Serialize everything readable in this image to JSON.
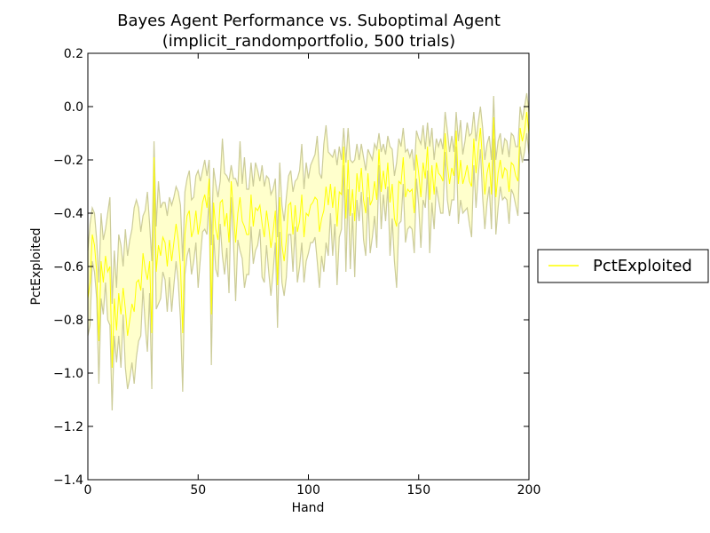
{
  "chart_data": {
    "type": "line",
    "title_line1": "Bayes Agent Performance vs. Suboptimal Agent",
    "title_line2": "(implicit_randomportfolio, 500 trials)",
    "xlabel": "Hand",
    "ylabel": "PctExploited",
    "xlim": [
      0,
      200
    ],
    "ylim": [
      -1.4,
      0.2
    ],
    "xticks": [
      0,
      50,
      100,
      150,
      200
    ],
    "xtick_labels": [
      "0",
      "50",
      "100",
      "150",
      "200"
    ],
    "yticks": [
      0.2,
      0.0,
      -0.2,
      -0.4,
      -0.6,
      -0.8,
      -1.0,
      -1.2,
      -1.4
    ],
    "ytick_labels": [
      "0.2",
      "0.0",
      "−0.2",
      "−0.4",
      "−0.6",
      "−0.8",
      "−1.0",
      "−1.2",
      "−1.4"
    ],
    "legend": {
      "label": "PctExploited",
      "placement": "right"
    },
    "series": [
      {
        "name": "PctExploited",
        "color": "#ffff00",
        "band_fill": "#ffffcc",
        "band_edge": "#cccc99",
        "x_start": 0,
        "x_step": 1,
        "mean": [
          -0.72,
          -0.66,
          -0.48,
          -0.52,
          -0.62,
          -0.88,
          -0.58,
          -0.66,
          -0.56,
          -0.62,
          -0.6,
          -0.98,
          -0.72,
          -0.84,
          -0.7,
          -0.78,
          -0.68,
          -0.76,
          -0.86,
          -0.8,
          -0.74,
          -0.77,
          -0.66,
          -0.65,
          -0.69,
          -0.55,
          -0.61,
          -0.65,
          -0.58,
          -0.85,
          -0.19,
          -0.62,
          -0.52,
          -0.56,
          -0.49,
          -0.51,
          -0.6,
          -0.5,
          -0.58,
          -0.51,
          -0.44,
          -0.5,
          -0.6,
          -0.85,
          -0.48,
          -0.41,
          -0.39,
          -0.49,
          -0.46,
          -0.39,
          -0.48,
          -0.43,
          -0.36,
          -0.33,
          -0.38,
          -0.27,
          -0.78,
          -0.36,
          -0.46,
          -0.5,
          -0.36,
          -0.35,
          -0.45,
          -0.4,
          -0.51,
          -0.28,
          -0.39,
          -0.51,
          -0.4,
          -0.34,
          -0.43,
          -0.45,
          -0.48,
          -0.48,
          -0.33,
          -0.45,
          -0.38,
          -0.39,
          -0.37,
          -0.44,
          -0.49,
          -0.39,
          -0.45,
          -0.53,
          -0.47,
          -0.39,
          -0.67,
          -0.34,
          -0.52,
          -0.58,
          -0.5,
          -0.37,
          -0.36,
          -0.48,
          -0.37,
          -0.47,
          -0.43,
          -0.33,
          -0.49,
          -0.4,
          -0.41,
          -0.37,
          -0.36,
          -0.34,
          -0.35,
          -0.47,
          -0.42,
          -0.39,
          -0.3,
          -0.37,
          -0.29,
          -0.38,
          -0.3,
          -0.45,
          -0.32,
          -0.33,
          -0.15,
          -0.42,
          -0.2,
          -0.41,
          -0.31,
          -0.43,
          -0.25,
          -0.32,
          -0.23,
          -0.35,
          -0.4,
          -0.25,
          -0.37,
          -0.35,
          -0.28,
          -0.35,
          -0.16,
          -0.32,
          -0.24,
          -0.31,
          -0.21,
          -0.36,
          -0.29,
          -0.42,
          -0.45,
          -0.28,
          -0.29,
          -0.19,
          -0.34,
          -0.31,
          -0.32,
          -0.31,
          -0.4,
          -0.18,
          -0.25,
          -0.34,
          -0.21,
          -0.27,
          -0.15,
          -0.35,
          -0.22,
          -0.33,
          -0.21,
          -0.25,
          -0.26,
          -0.28,
          -0.1,
          -0.22,
          -0.29,
          -0.23,
          -0.26,
          -0.09,
          -0.29,
          -0.2,
          -0.29,
          -0.26,
          -0.22,
          -0.28,
          -0.3,
          -0.12,
          -0.25,
          -0.16,
          -0.08,
          -0.21,
          -0.33,
          -0.25,
          -0.21,
          -0.33,
          -0.04,
          -0.34,
          -0.25,
          -0.2,
          -0.27,
          -0.23,
          -0.24,
          -0.32,
          -0.21,
          -0.22,
          -0.26,
          -0.28,
          -0.08,
          -0.13,
          -0.09,
          -0.02,
          -0.1
        ],
        "upper": [
          -0.54,
          -0.44,
          -0.38,
          -0.4,
          -0.5,
          -0.66,
          -0.4,
          -0.5,
          -0.46,
          -0.4,
          -0.34,
          -0.74,
          -0.54,
          -0.68,
          -0.48,
          -0.52,
          -0.6,
          -0.46,
          -0.56,
          -0.5,
          -0.46,
          -0.38,
          -0.35,
          -0.38,
          -0.47,
          -0.41,
          -0.39,
          -0.32,
          -0.44,
          -0.58,
          -0.13,
          -0.45,
          -0.28,
          -0.38,
          -0.36,
          -0.36,
          -0.41,
          -0.34,
          -0.37,
          -0.34,
          -0.3,
          -0.32,
          -0.37,
          -0.58,
          -0.32,
          -0.27,
          -0.24,
          -0.35,
          -0.34,
          -0.26,
          -0.24,
          -0.28,
          -0.24,
          -0.2,
          -0.26,
          -0.2,
          -0.52,
          -0.23,
          -0.29,
          -0.34,
          -0.28,
          -0.12,
          -0.25,
          -0.26,
          -0.28,
          -0.22,
          -0.27,
          -0.27,
          -0.3,
          -0.13,
          -0.29,
          -0.19,
          -0.31,
          -0.31,
          -0.21,
          -0.3,
          -0.21,
          -0.24,
          -0.28,
          -0.22,
          -0.3,
          -0.26,
          -0.27,
          -0.33,
          -0.31,
          -0.27,
          -0.49,
          -0.21,
          -0.37,
          -0.43,
          -0.34,
          -0.26,
          -0.24,
          -0.32,
          -0.28,
          -0.27,
          -0.24,
          -0.14,
          -0.31,
          -0.21,
          -0.27,
          -0.22,
          -0.2,
          -0.18,
          -0.11,
          -0.25,
          -0.27,
          -0.14,
          -0.07,
          -0.17,
          -0.18,
          -0.19,
          -0.16,
          -0.22,
          -0.15,
          -0.2,
          -0.08,
          -0.21,
          -0.08,
          -0.2,
          -0.21,
          -0.2,
          -0.14,
          -0.2,
          -0.14,
          -0.19,
          -0.24,
          -0.16,
          -0.18,
          -0.2,
          -0.14,
          -0.16,
          -0.1,
          -0.17,
          -0.14,
          -0.18,
          -0.11,
          -0.15,
          -0.16,
          -0.26,
          -0.21,
          -0.12,
          -0.15,
          -0.08,
          -0.17,
          -0.16,
          -0.19,
          -0.16,
          -0.24,
          -0.09,
          -0.12,
          -0.14,
          -0.07,
          -0.16,
          -0.06,
          -0.15,
          -0.08,
          -0.2,
          -0.12,
          -0.15,
          -0.12,
          -0.16,
          -0.02,
          -0.09,
          -0.17,
          -0.11,
          -0.17,
          -0.02,
          -0.13,
          -0.05,
          -0.18,
          -0.13,
          -0.06,
          -0.11,
          -0.1,
          -0.02,
          -0.13,
          -0.06,
          0.0,
          -0.08,
          -0.2,
          -0.14,
          -0.11,
          -0.2,
          0.04,
          -0.2,
          -0.13,
          -0.1,
          -0.18,
          -0.12,
          -0.13,
          -0.19,
          -0.1,
          -0.11,
          -0.15,
          -0.15,
          0.0,
          -0.05,
          0.0,
          0.05,
          -0.02
        ],
        "lower": [
          -0.86,
          -0.82,
          -0.58,
          -0.62,
          -0.72,
          -1.04,
          -0.72,
          -0.78,
          -0.66,
          -0.8,
          -0.82,
          -1.14,
          -0.86,
          -0.96,
          -0.86,
          -0.98,
          -0.78,
          -0.98,
          -1.06,
          -1.02,
          -0.96,
          -1.04,
          -0.94,
          -0.88,
          -0.86,
          -0.68,
          -0.82,
          -0.92,
          -0.7,
          -1.06,
          -0.24,
          -0.76,
          -0.74,
          -0.72,
          -0.62,
          -0.65,
          -0.77,
          -0.64,
          -0.77,
          -0.67,
          -0.58,
          -0.66,
          -0.8,
          -1.07,
          -0.63,
          -0.56,
          -0.53,
          -0.63,
          -0.58,
          -0.51,
          -0.68,
          -0.57,
          -0.47,
          -0.46,
          -0.48,
          -0.34,
          -0.97,
          -0.48,
          -0.61,
          -0.64,
          -0.44,
          -0.56,
          -0.63,
          -0.53,
          -0.7,
          -0.34,
          -0.5,
          -0.73,
          -0.5,
          -0.54,
          -0.57,
          -0.68,
          -0.63,
          -0.63,
          -0.45,
          -0.59,
          -0.54,
          -0.52,
          -0.46,
          -0.64,
          -0.66,
          -0.52,
          -0.62,
          -0.71,
          -0.62,
          -0.51,
          -0.83,
          -0.47,
          -0.66,
          -0.71,
          -0.64,
          -0.48,
          -0.48,
          -0.62,
          -0.45,
          -0.66,
          -0.6,
          -0.51,
          -0.66,
          -0.58,
          -0.55,
          -0.51,
          -0.51,
          -0.49,
          -0.58,
          -0.68,
          -0.56,
          -0.62,
          -0.51,
          -0.56,
          -0.4,
          -0.56,
          -0.44,
          -0.67,
          -0.49,
          -0.46,
          -0.22,
          -0.62,
          -0.31,
          -0.61,
          -0.4,
          -0.64,
          -0.35,
          -0.43,
          -0.32,
          -0.5,
          -0.56,
          -0.34,
          -0.55,
          -0.49,
          -0.41,
          -0.53,
          -0.22,
          -0.46,
          -0.33,
          -0.43,
          -0.3,
          -0.56,
          -0.42,
          -0.58,
          -0.68,
          -0.44,
          -0.43,
          -0.29,
          -0.51,
          -0.46,
          -0.45,
          -0.46,
          -0.55,
          -0.27,
          -0.37,
          -0.53,
          -0.35,
          -0.38,
          -0.24,
          -0.55,
          -0.36,
          -0.46,
          -0.3,
          -0.35,
          -0.4,
          -0.4,
          -0.17,
          -0.35,
          -0.41,
          -0.35,
          -0.35,
          -0.15,
          -0.44,
          -0.35,
          -0.4,
          -0.39,
          -0.38,
          -0.44,
          -0.49,
          -0.22,
          -0.38,
          -0.26,
          -0.16,
          -0.34,
          -0.46,
          -0.36,
          -0.3,
          -0.46,
          -0.12,
          -0.48,
          -0.38,
          -0.3,
          -0.35,
          -0.34,
          -0.35,
          -0.44,
          -0.31,
          -0.33,
          -0.37,
          -0.41,
          -0.15,
          -0.21,
          -0.17,
          -0.1,
          -0.18
        ]
      }
    ]
  }
}
